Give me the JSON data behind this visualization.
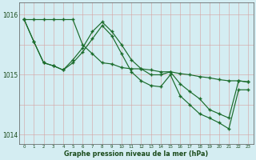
{
  "hours": [
    0,
    1,
    2,
    3,
    4,
    5,
    6,
    7,
    8,
    9,
    10,
    11,
    12,
    13,
    14,
    15,
    16,
    17,
    18,
    19,
    20,
    21,
    22,
    23
  ],
  "line1": [
    1015.92,
    1015.92,
    1015.92,
    1015.92,
    1015.92,
    1015.92,
    1015.5,
    1015.35,
    1015.2,
    1015.18,
    1015.12,
    1015.1,
    1015.1,
    1015.08,
    1015.05,
    1015.05,
    1015.02,
    1015.0,
    1014.97,
    1014.95,
    1014.92,
    1014.9,
    1014.9,
    1014.88
  ],
  "line2": [
    1015.92,
    1015.55,
    1015.2,
    1015.15,
    1015.08,
    1015.25,
    1015.45,
    1015.72,
    1015.88,
    1015.72,
    1015.5,
    1015.25,
    1015.1,
    1015.0,
    1015.0,
    1015.05,
    1014.85,
    1014.72,
    1014.6,
    1014.42,
    1014.35,
    1014.28,
    1014.9,
    1014.88
  ],
  "line3": [
    1015.92,
    1015.55,
    1015.2,
    1015.15,
    1015.08,
    1015.2,
    1015.38,
    1015.6,
    1015.82,
    1015.65,
    1015.35,
    1015.05,
    1014.9,
    1014.82,
    1014.8,
    1015.0,
    1014.65,
    1014.5,
    1014.35,
    1014.28,
    1014.2,
    1014.1,
    1014.75,
    1014.75
  ],
  "ylim": [
    1013.85,
    1016.2
  ],
  "yticks": [
    1014,
    1015,
    1016
  ],
  "bg_color": "#d4edf2",
  "grid_color_v": "#c8dde0",
  "grid_color_h": "#e8b8b8",
  "line_color": "#1a6b2a",
  "xlabel": "Graphe pression niveau de la mer (hPa)"
}
